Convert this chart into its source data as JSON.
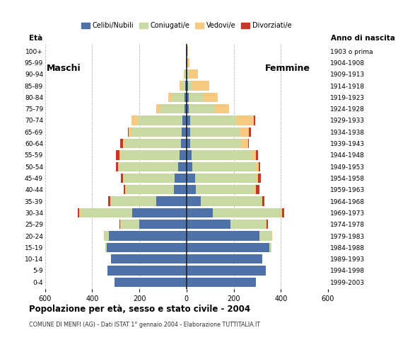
{
  "age_groups": [
    "0-4",
    "5-9",
    "10-14",
    "15-19",
    "20-24",
    "25-29",
    "30-34",
    "35-39",
    "40-44",
    "45-49",
    "50-54",
    "55-59",
    "60-64",
    "65-69",
    "70-74",
    "75-79",
    "80-84",
    "85-89",
    "90-94",
    "95-99",
    "100+"
  ],
  "birth_years": [
    "1999-2003",
    "1994-1998",
    "1989-1993",
    "1984-1988",
    "1979-1983",
    "1974-1978",
    "1969-1973",
    "1964-1968",
    "1959-1963",
    "1954-1958",
    "1949-1953",
    "1944-1948",
    "1939-1943",
    "1934-1938",
    "1929-1933",
    "1924-1928",
    "1919-1923",
    "1914-1918",
    "1909-1913",
    "1904-1908",
    "1903 o prima"
  ],
  "colors": {
    "celibe": "#4e72a8",
    "coniugato": "#c8d9a4",
    "vedovo": "#f5c97f",
    "divorziato": "#c0392b"
  },
  "males": {
    "celibe": [
      305,
      335,
      320,
      340,
      330,
      200,
      230,
      130,
      55,
      50,
      35,
      30,
      25,
      20,
      18,
      10,
      8,
      5,
      3,
      2,
      2
    ],
    "coniugato": [
      0,
      0,
      2,
      5,
      20,
      80,
      220,
      190,
      200,
      215,
      250,
      250,
      235,
      215,
      190,
      100,
      55,
      15,
      5,
      0,
      0
    ],
    "vedovo": [
      0,
      0,
      0,
      0,
      2,
      2,
      5,
      5,
      5,
      5,
      5,
      5,
      10,
      10,
      25,
      20,
      15,
      10,
      5,
      0,
      0
    ],
    "divorziato": [
      0,
      0,
      0,
      0,
      0,
      2,
      5,
      8,
      8,
      8,
      10,
      15,
      12,
      5,
      2,
      0,
      0,
      0,
      0,
      0,
      0
    ]
  },
  "females": {
    "celibe": [
      295,
      335,
      320,
      350,
      310,
      185,
      110,
      60,
      40,
      35,
      25,
      20,
      15,
      15,
      15,
      10,
      8,
      5,
      3,
      2,
      2
    ],
    "coniugato": [
      0,
      0,
      2,
      10,
      50,
      150,
      290,
      255,
      245,
      260,
      270,
      255,
      215,
      210,
      195,
      110,
      65,
      20,
      5,
      0,
      0
    ],
    "vedovo": [
      0,
      0,
      0,
      0,
      2,
      5,
      5,
      5,
      8,
      8,
      10,
      20,
      30,
      40,
      75,
      60,
      60,
      70,
      40,
      10,
      3
    ],
    "divorziato": [
      0,
      0,
      0,
      0,
      2,
      5,
      8,
      10,
      15,
      12,
      8,
      8,
      5,
      8,
      5,
      0,
      0,
      0,
      0,
      0,
      0
    ]
  },
  "title": "Popolazione per età, sesso e stato civile - 2004",
  "subtitle": "COMUNE DI MENFI (AG) - Dati ISTAT 1° gennaio 2004 - Elaborazione TUTTITALIA.IT",
  "maschi_label": "Maschi",
  "femmine_label": "Femmine",
  "eta_label": "Età",
  "anno_label": "Anno di nascita",
  "xlim": 600,
  "legend_labels": [
    "Celibi/Nubili",
    "Coniugati/e",
    "Vedovi/e",
    "Divorziati/e"
  ],
  "background_color": "#ffffff",
  "grid_color": "#bbbbbb"
}
